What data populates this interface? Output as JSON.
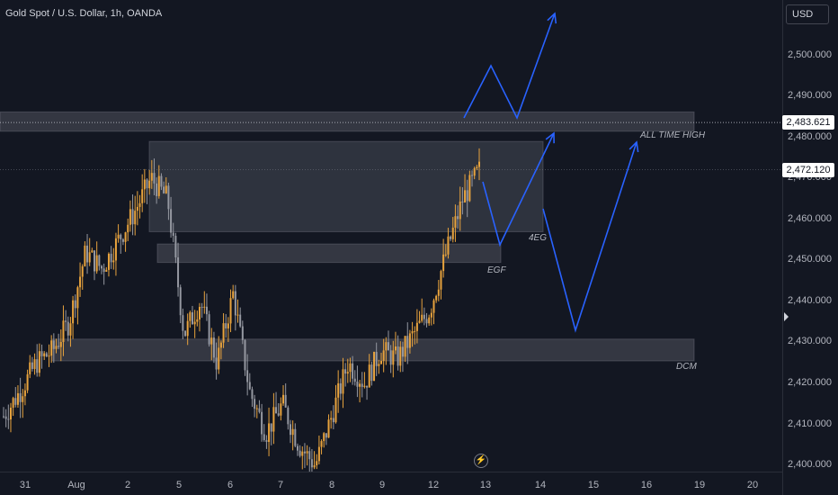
{
  "chart": {
    "title": "Gold Spot / U.S. Dollar, 1h, OANDA",
    "currency": "USD",
    "colors": {
      "background": "#131722",
      "candle_up": "#e8a33d",
      "candle_down": "#9598a1",
      "zone_fill": "#5d606b",
      "arrow": "#2962ff"
    },
    "flash_icon": "lightning-icon"
  },
  "chart_data": {
    "type": "candlestick",
    "title": "Gold Spot / U.S. Dollar, 1h, OANDA",
    "ylim": [
      2398.5,
      2513.5
    ],
    "x_tick_labels": [
      "31",
      "Aug",
      "2",
      "5",
      "6",
      "7",
      "8",
      "9",
      "12",
      "13",
      "14",
      "15",
      "16",
      "19",
      "20"
    ],
    "y_tick_labels": [
      "2,500.000",
      "2,490.000",
      "2,480.000",
      "2,470.000",
      "2,460.000",
      "2,450.000",
      "2,440.000",
      "2,430.000",
      "2,420.000",
      "2,410.000",
      "2,400.000"
    ],
    "y_ticks": [
      2500,
      2490,
      2480,
      2470,
      2460,
      2450,
      2440,
      2430,
      2420,
      2410,
      2400
    ],
    "price_tags": [
      {
        "label": "2,483.621",
        "value": 2483.621,
        "line": "dotted"
      },
      {
        "label": "2,472.120",
        "value": 2472.12,
        "line": "dotted-faint"
      }
    ],
    "path_points": [
      [
        0,
        2412
      ],
      [
        1,
        2418
      ],
      [
        2,
        2425
      ],
      [
        3,
        2428
      ],
      [
        4,
        2435
      ],
      [
        5,
        2452
      ],
      [
        6,
        2448
      ],
      [
        7,
        2455
      ],
      [
        8,
        2462
      ],
      [
        9,
        2470
      ],
      [
        10,
        2465
      ],
      [
        11,
        2432
      ],
      [
        12,
        2440
      ],
      [
        13,
        2425
      ],
      [
        14,
        2442
      ],
      [
        15,
        2418
      ],
      [
        16,
        2408
      ],
      [
        17,
        2415
      ],
      [
        18,
        2405
      ],
      [
        19,
        2400
      ],
      [
        20,
        2412
      ],
      [
        21,
        2425
      ],
      [
        22,
        2420
      ],
      [
        23,
        2428
      ],
      [
        24,
        2426
      ],
      [
        25,
        2432
      ],
      [
        26,
        2438
      ],
      [
        27,
        2452
      ],
      [
        28,
        2465
      ],
      [
        29,
        2472
      ]
    ],
    "zones": [
      {
        "label": "",
        "from": 2481.5,
        "to": 2486.2,
        "wide": true
      },
      {
        "label": "4EG",
        "from": 2457,
        "to": 2479
      },
      {
        "label": "EGF",
        "from": 2449.5,
        "to": 2454
      },
      {
        "label": "DCM",
        "from": 2425.5,
        "to": 2430.8
      }
    ],
    "annotations": [
      "ALL TIME HIGH",
      "4EG",
      "EGF",
      "DCM"
    ]
  }
}
